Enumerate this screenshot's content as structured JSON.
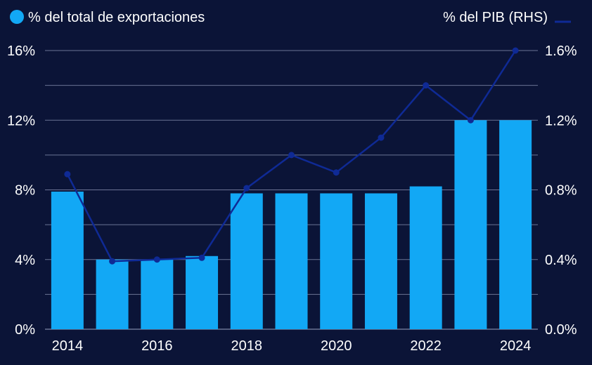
{
  "chart_data": {
    "type": "bar",
    "x": [
      2014,
      2015,
      2016,
      2017,
      2018,
      2019,
      2020,
      2021,
      2022,
      2023,
      2024
    ],
    "series": [
      {
        "name": "% del total de exportaciones",
        "kind": "bar",
        "axis": "left",
        "color": "#12a8f5",
        "values": [
          7.9,
          4.0,
          4.0,
          4.2,
          7.8,
          7.8,
          7.8,
          7.8,
          8.2,
          12.0,
          12.0
        ]
      },
      {
        "name": "% del PIB (RHS)",
        "kind": "line",
        "axis": "right",
        "color": "#0f2a95",
        "values": [
          0.89,
          0.39,
          0.4,
          0.41,
          0.81,
          1.0,
          0.9,
          1.1,
          1.4,
          1.2,
          1.6
        ]
      }
    ],
    "ylim_left": [
      0,
      16
    ],
    "ylim_right": [
      0,
      1.6
    ],
    "left_ticks": [
      "0%",
      "4%",
      "8%",
      "12%",
      "16%"
    ],
    "right_ticks": [
      "0.0%",
      "0.4%",
      "0.8%",
      "1.2%",
      "1.6%"
    ],
    "x_tick_labels": [
      "2014",
      "2016",
      "2018",
      "2020",
      "2022",
      "2024"
    ],
    "grid": true,
    "legend": [
      {
        "label": "% del total de exportaciones",
        "marker": "circle",
        "color": "#12a8f5",
        "position": "top-left"
      },
      {
        "label": "% del PIB (RHS)",
        "marker": "line",
        "color": "#0f2a95",
        "position": "top-right"
      }
    ],
    "colors": {
      "background": "#0b1437",
      "gridline": "#6b7394",
      "text": "#ffffff"
    }
  }
}
